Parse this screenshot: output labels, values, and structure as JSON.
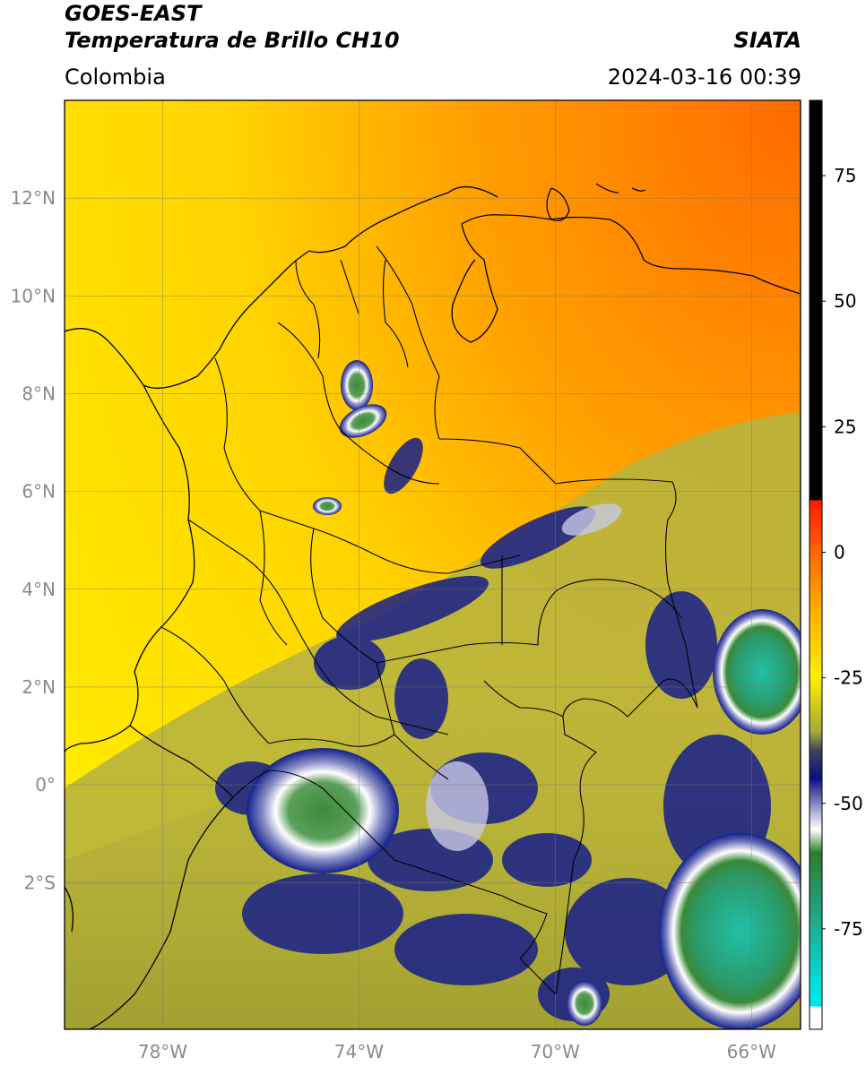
{
  "header": {
    "satellite": "GOES-EAST",
    "product": "Temperatura de Brillo CH10",
    "region": "Colombia",
    "brand": "SIATA",
    "timestamp": "2024-03-16 00:39"
  },
  "map": {
    "lat_ticks": [
      {
        "value": 12,
        "label": "12°N"
      },
      {
        "value": 10,
        "label": "10°N"
      },
      {
        "value": 8,
        "label": "8°N"
      },
      {
        "value": 6,
        "label": "6°N"
      },
      {
        "value": 4,
        "label": "4°N"
      },
      {
        "value": 2,
        "label": "2°N"
      },
      {
        "value": 0,
        "label": "0°"
      },
      {
        "value": -2,
        "label": "2°S"
      }
    ],
    "lon_ticks": [
      {
        "value": -78,
        "label": "78°W"
      },
      {
        "value": -74,
        "label": "74°W"
      },
      {
        "value": -70,
        "label": "70°W"
      },
      {
        "value": -66,
        "label": "66°W"
      }
    ],
    "lon_range": [
      -80,
      -65
    ],
    "lat_range": [
      -5,
      14
    ],
    "grid": true
  },
  "colorbar": {
    "range": [
      -95,
      90
    ],
    "ticks": [
      {
        "value": 75,
        "label": "75"
      },
      {
        "value": 50,
        "label": "50"
      },
      {
        "value": 25,
        "label": "25"
      },
      {
        "value": 0,
        "label": "0"
      },
      {
        "value": -25,
        "label": "-25"
      },
      {
        "value": -50,
        "label": "-50"
      },
      {
        "value": -75,
        "label": "-75"
      }
    ],
    "colors": {
      "warm": "#ff5500",
      "orange": "#ffa500",
      "yellow": "#ffee00",
      "olive": "#b4b03a",
      "navy": "#101a8a",
      "white": "#ffffff",
      "green": "#2e7d2e",
      "teal": "#20c0a8",
      "cyan": "#00e5e5",
      "black": "#000000",
      "red": "#ff2200"
    }
  }
}
